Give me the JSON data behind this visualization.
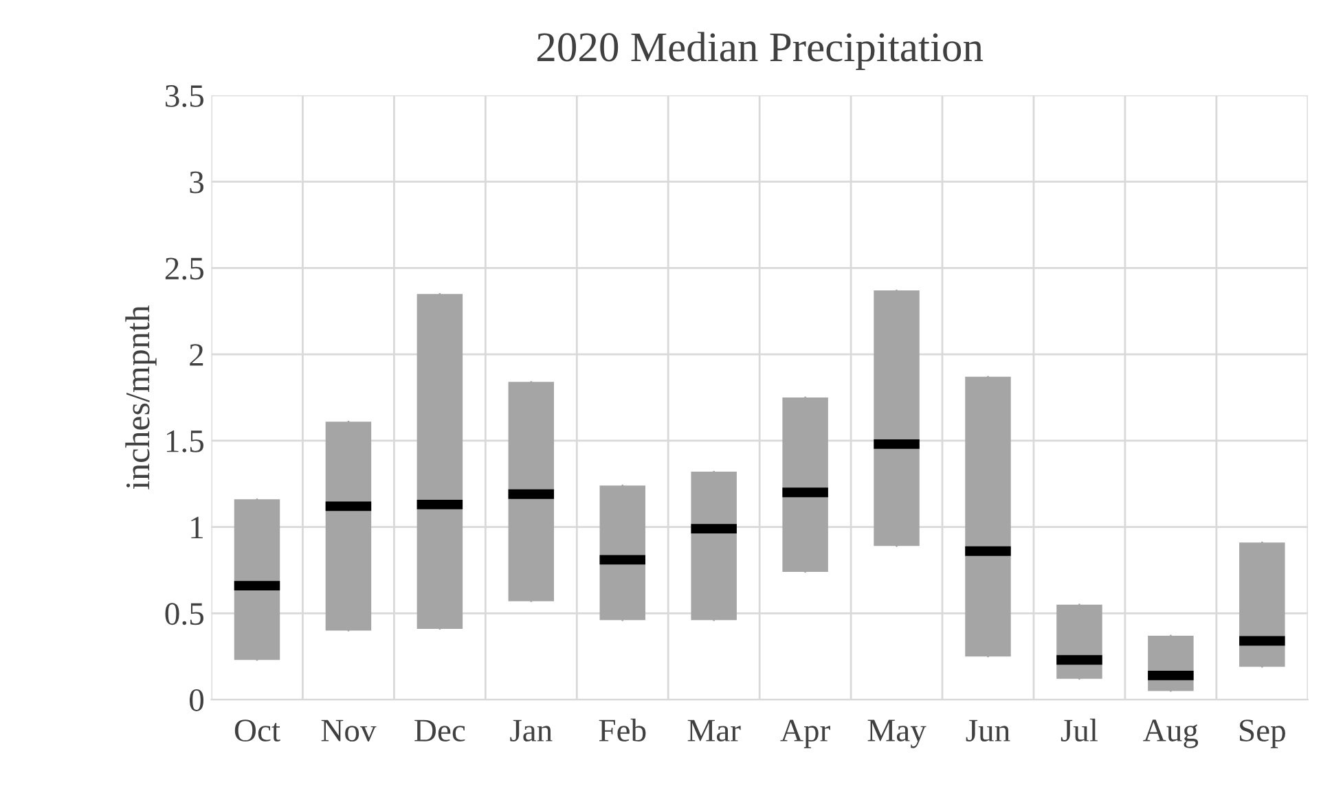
{
  "chart_data": {
    "type": "box",
    "title": "2020 Median Precipitation",
    "ylabel": "inches/mpnth",
    "categories": [
      "Oct",
      "Nov",
      "Dec",
      "Jan",
      "Feb",
      "Mar",
      "Apr",
      "May",
      "Jun",
      "Jul",
      "Aug",
      "Sep"
    ],
    "series": [
      {
        "color": "#a5a5a5",
        "boxes": [
          {
            "low": 0.23,
            "q1": 0.23,
            "median": 0.66,
            "q3": 1.16,
            "high": 1.16
          },
          {
            "low": 0.4,
            "q1": 0.4,
            "median": 1.12,
            "q3": 1.61,
            "high": 1.61
          },
          {
            "low": 0.41,
            "q1": 0.41,
            "median": 1.13,
            "q3": 2.35,
            "high": 2.35
          },
          {
            "low": 0.57,
            "q1": 0.57,
            "median": 1.19,
            "q3": 1.84,
            "high": 1.84
          },
          {
            "low": 0.46,
            "q1": 0.46,
            "median": 0.81,
            "q3": 1.24,
            "high": 1.24
          },
          {
            "low": 0.46,
            "q1": 0.46,
            "median": 0.99,
            "q3": 1.32,
            "high": 1.32
          },
          {
            "low": 0.74,
            "q1": 0.74,
            "median": 1.2,
            "q3": 1.75,
            "high": 1.75
          },
          {
            "low": 0.89,
            "q1": 0.89,
            "median": 1.48,
            "q3": 2.37,
            "high": 2.37
          },
          {
            "low": 0.25,
            "q1": 0.25,
            "median": 0.86,
            "q3": 1.87,
            "high": 1.87
          },
          {
            "low": 0.12,
            "q1": 0.12,
            "median": 0.23,
            "q3": 0.55,
            "high": 0.55
          },
          {
            "low": 0.05,
            "q1": 0.05,
            "median": 0.14,
            "q3": 0.37,
            "high": 0.37
          },
          {
            "low": 0.19,
            "q1": 0.19,
            "median": 0.34,
            "q3": 0.91,
            "high": 0.91
          }
        ]
      }
    ],
    "ylim": [
      0,
      3.5
    ],
    "yticks": [
      0,
      0.5,
      1,
      1.5,
      2,
      2.5,
      3,
      3.5
    ],
    "grid": true
  }
}
